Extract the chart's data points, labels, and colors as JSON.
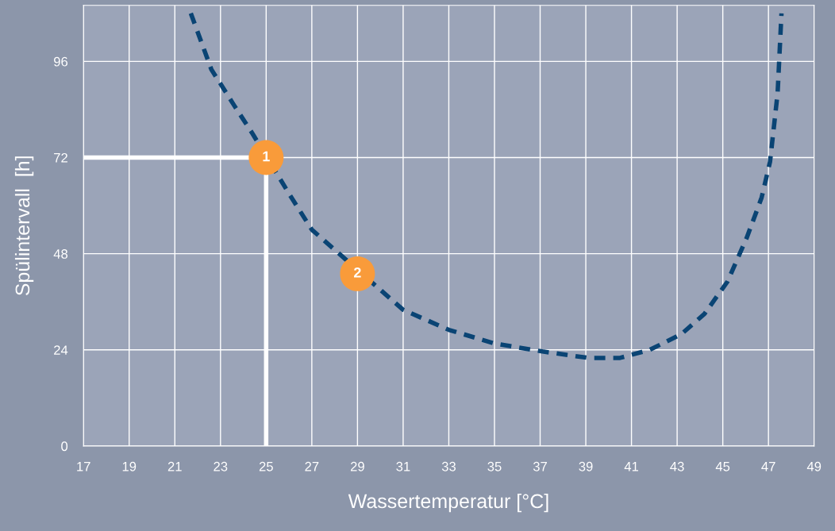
{
  "chart_data": {
    "type": "line",
    "xlabel": "Wassertemperatur [°C]",
    "ylabel": "Spülintervall  [h]",
    "xlim": [
      17,
      49
    ],
    "xticks": [
      17,
      19,
      21,
      23,
      25,
      27,
      29,
      31,
      33,
      35,
      37,
      39,
      41,
      43,
      45,
      47,
      49
    ],
    "ylim": [
      0,
      110
    ],
    "yticks": [
      0,
      24,
      48,
      72,
      96
    ],
    "grid": true,
    "legend": false,
    "series": [
      {
        "color": "#0a4474",
        "line_style": "dashed",
        "marker": "none",
        "x": [
          21.7,
          22.6,
          23.6,
          24.4,
          26,
          27,
          28,
          30,
          31,
          33,
          35,
          37.1,
          39.1,
          40.5,
          41.8,
          43.2,
          44.2,
          45.2,
          46.05,
          46.7,
          47.07,
          47.4,
          47.57
        ],
        "values": [
          108,
          94,
          85,
          78,
          63,
          54,
          49,
          39,
          34,
          29,
          25.6,
          23.6,
          22,
          22,
          24,
          28,
          33,
          41,
          52,
          62,
          71,
          88,
          108
        ]
      },
      {
        "color": "#ffffff",
        "line_style": "solid",
        "marker": "none",
        "x": [
          17,
          25,
          25
        ],
        "values": [
          72,
          72,
          0
        ]
      },
      {
        "type": "scatter",
        "color": "#f99b3a",
        "marker": "circle",
        "x": [
          25,
          29
        ],
        "values": [
          72,
          43
        ]
      }
    ],
    "annotations": [
      {
        "text": "1",
        "x": 25,
        "y": 72
      },
      {
        "text": "2",
        "x": 29,
        "y": 43
      }
    ]
  }
}
